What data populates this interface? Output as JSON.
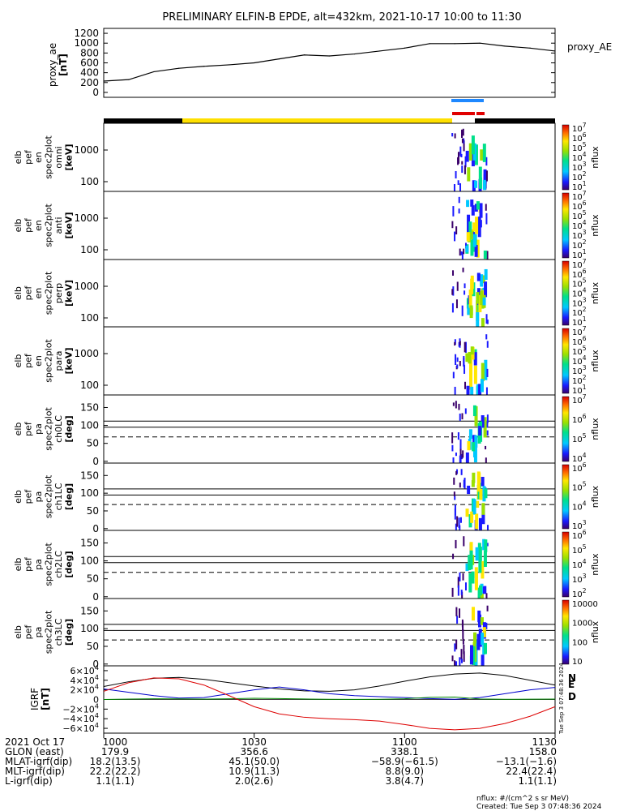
{
  "title": "PRELIMINARY ELFIN-B EPDE, alt=432km, 2021-10-17 10:00 to 11:30",
  "ae_panel": {
    "ylabel_top": "proxy_ae",
    "ylabel_bottom": "[nT]",
    "legend": "proxy_AE",
    "yticks": [
      "1200",
      "1000",
      "800",
      "600",
      "400",
      "200",
      "0"
    ],
    "ylim": [
      -100,
      1300
    ]
  },
  "spectrogram_panels": [
    {
      "lines": [
        "elb",
        "pef",
        "en",
        "spec2plot",
        "omni",
        "[keV]"
      ],
      "yticks": [
        "1000",
        "100"
      ],
      "cbar_ticks": [
        "10^7",
        "10^6",
        "10^5",
        "10^4",
        "10^3",
        "10^2",
        "10^1"
      ],
      "cbar_label": "nflux"
    },
    {
      "lines": [
        "elb",
        "pef",
        "en",
        "spec2plot",
        "anti",
        "[keV]"
      ],
      "yticks": [
        "1000",
        "100"
      ],
      "cbar_ticks": [
        "10^7",
        "10^6",
        "10^5",
        "10^4",
        "10^3",
        "10^2",
        "10^1"
      ],
      "cbar_label": "nflux"
    },
    {
      "lines": [
        "elb",
        "pef",
        "en",
        "spec2plot",
        "perp",
        "[keV]"
      ],
      "yticks": [
        "1000",
        "100"
      ],
      "cbar_ticks": [
        "10^7",
        "10^6",
        "10^5",
        "10^4",
        "10^3",
        "10^2",
        "10^1"
      ],
      "cbar_label": "nflux"
    },
    {
      "lines": [
        "elb",
        "pef",
        "en",
        "spec2plot",
        "para",
        "[keV]"
      ],
      "yticks": [
        "1000",
        "100"
      ],
      "cbar_ticks": [
        "10^7",
        "10^6",
        "10^5",
        "10^4",
        "10^3",
        "10^2",
        "10^1"
      ],
      "cbar_label": "nflux"
    },
    {
      "lines": [
        "elb",
        "pef",
        "pa",
        "spec2plot",
        "ch0LC",
        "[deg]"
      ],
      "yticks": [
        "150",
        "100",
        "50",
        "0"
      ],
      "cbar_ticks": [
        "10^7",
        "10^6",
        "10^5",
        "10^4"
      ],
      "cbar_label": "nflux"
    },
    {
      "lines": [
        "elb",
        "pef",
        "pa",
        "spec2plot",
        "ch1LC",
        "[deg]"
      ],
      "yticks": [
        "150",
        "100",
        "50",
        "0"
      ],
      "cbar_ticks": [
        "10^6",
        "10^5",
        "10^4",
        "10^3"
      ],
      "cbar_label": "nflux"
    },
    {
      "lines": [
        "elb",
        "pef",
        "pa",
        "spec2plot",
        "ch2LC",
        "[deg]"
      ],
      "yticks": [
        "150",
        "100",
        "50",
        "0"
      ],
      "cbar_ticks": [
        "10^6",
        "10^5",
        "10^4",
        "10^3",
        "10^2"
      ],
      "cbar_label": "nflux"
    },
    {
      "lines": [
        "elb",
        "pef",
        "pa",
        "spec2plot",
        "ch3LC",
        "[deg]"
      ],
      "yticks": [
        "150",
        "100",
        "50",
        "0"
      ],
      "cbar_ticks": [
        "10000",
        "1000",
        "100",
        "10"
      ],
      "cbar_label": "nflux"
    }
  ],
  "igrf_panel": {
    "ylabel_top": "IGRF",
    "ylabel_bottom": "[nT]",
    "yticks": [
      "6×10^4",
      "4×10^4",
      "2×10^4",
      "0",
      "−2×10^4",
      "−4×10^4",
      "−6×10^4"
    ],
    "legend": [
      "N",
      "E",
      "D"
    ],
    "legend_colors": [
      "#0000cc",
      "#008800",
      "#ff3300"
    ],
    "stamp": "Tue Sep  3 07:48:36 2024"
  },
  "bottom_table": {
    "rows": [
      {
        "label": "2021 Oct 17",
        "values": [
          "1000",
          "1030",
          "1100",
          "1130"
        ]
      },
      {
        "label": "GLON (east)",
        "values": [
          "179.9",
          "356.6",
          "338.1",
          "158.0"
        ]
      },
      {
        "label": "MLAT-igrf(dip)",
        "values": [
          "18.2(13.5)",
          "45.1(50.0)",
          "−58.9(−61.5)",
          "−13.1(−1.6)"
        ]
      },
      {
        "label": "MLT-igrf(dip)",
        "values": [
          "22.2(22.2)",
          "10.9(11.3)",
          "8.8(9.0)",
          "22.4(22.4)"
        ]
      },
      {
        "label": "L-igrf(dip)",
        "values": [
          "1.1(1.1)",
          "2.0(2.6)",
          "3.8(4.7)",
          "1.1(1.1)"
        ]
      }
    ]
  },
  "footer": {
    "units": "nflux: #/(cm^2 s sr MeV)",
    "created": "Created: Tue Sep  3 07:48:36 2024"
  },
  "chart_data": [
    {
      "type": "line",
      "name": "proxy_AE",
      "x_minutes": [
        0,
        5,
        10,
        15,
        20,
        25,
        30,
        35,
        40,
        45,
        50,
        55,
        60,
        65,
        70,
        75,
        80,
        85,
        90
      ],
      "values": [
        230,
        260,
        420,
        490,
        530,
        560,
        600,
        680,
        760,
        740,
        780,
        840,
        900,
        990,
        990,
        1000,
        940,
        900,
        840
      ],
      "ylim": [
        -100,
        1300
      ]
    },
    {
      "type": "line",
      "name": "IGRF",
      "x_minutes": [
        0,
        5,
        10,
        15,
        20,
        25,
        30,
        35,
        40,
        45,
        50,
        55,
        60,
        65,
        70,
        75,
        80,
        85,
        90
      ],
      "series": [
        {
          "color": "#000000",
          "values": [
            27000,
            37000,
            44000,
            46000,
            42000,
            35000,
            28000,
            22000,
            18000,
            17000,
            20000,
            28000,
            38000,
            47000,
            53000,
            55000,
            50000,
            40000,
            30000
          ]
        },
        {
          "color": "#0000cc",
          "values": [
            22000,
            15000,
            8000,
            3000,
            4000,
            12000,
            20000,
            26000,
            20000,
            12000,
            8000,
            6000,
            4000,
            2000,
            500,
            4000,
            12000,
            20000,
            25000
          ]
        },
        {
          "color": "#008800",
          "values": [
            0,
            800,
            1500,
            1200,
            800,
            1500,
            2500,
            2000,
            1000,
            500,
            300,
            500,
            1500,
            4500,
            5000,
            1000,
            400,
            600,
            800
          ]
        },
        {
          "color": "#dd0000",
          "values": [
            17000,
            35000,
            45000,
            43000,
            30000,
            8000,
            -15000,
            -30000,
            -37000,
            -40000,
            -42000,
            -45000,
            -52000,
            -60000,
            -63000,
            -60000,
            -50000,
            -35000,
            -15000
          ]
        }
      ],
      "ylim": [
        -70000,
        70000
      ]
    }
  ]
}
